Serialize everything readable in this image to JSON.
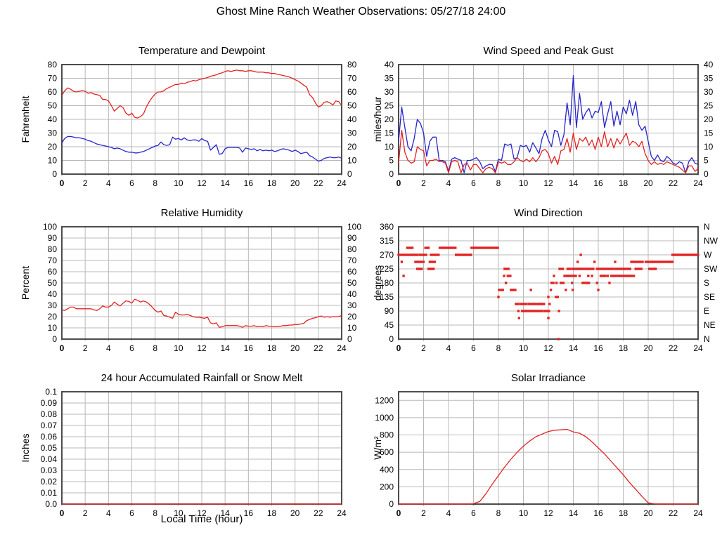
{
  "page_title": "Ghost Mine Ranch Weather Observations: 05/27/18 24:00",
  "colors": {
    "red": "#e32222",
    "blue": "#2626cc",
    "grid": "#b8b8b8",
    "axis": "#383838"
  },
  "chart_data": [
    {
      "id": "temperature_dewpoint",
      "type": "line",
      "title": "Temperature and Dewpoint",
      "ylabel": "Fahrenheit",
      "xlim": [
        0,
        24
      ],
      "xtick_step": 2,
      "ylim": [
        0,
        80
      ],
      "ytick_step": 10,
      "right_labels": "mirror",
      "x_step": 0.25,
      "series": [
        {
          "name": "temperature",
          "color": "red",
          "values": [
            57.5,
            61,
            63,
            62,
            60.5,
            60,
            60.5,
            61,
            60.5,
            59,
            59.5,
            58.5,
            58,
            57.5,
            54.5,
            54.5,
            53.5,
            50,
            46,
            48,
            50,
            48.5,
            44.5,
            43,
            44.5,
            41.5,
            41,
            42,
            44,
            49,
            53,
            56,
            58.5,
            60,
            60,
            61,
            62.5,
            63.5,
            64.5,
            65.5,
            65.5,
            66.5,
            66,
            67,
            67.5,
            68.5,
            68,
            69,
            69.5,
            70,
            70.5,
            71.5,
            72,
            72.5,
            73.5,
            74,
            75,
            75.5,
            75,
            75.5,
            76,
            75.5,
            75.5,
            75,
            75.5,
            75.5,
            75,
            74.5,
            74.5,
            74.5,
            74,
            74,
            73.5,
            73.5,
            73,
            72.5,
            72,
            71.5,
            71,
            70,
            69,
            68,
            66.5,
            65,
            63.5,
            58,
            56,
            52,
            49,
            50,
            52.5,
            53,
            52,
            50.5,
            53.5,
            53,
            50
          ]
        },
        {
          "name": "dewpoint",
          "color": "blue",
          "values": [
            23,
            26,
            27.5,
            27.5,
            27,
            26.5,
            26.5,
            26,
            25.5,
            24.5,
            24,
            23,
            22,
            21.5,
            21,
            20.5,
            20,
            19.5,
            18.5,
            19,
            18.5,
            17.5,
            16.5,
            16,
            16,
            15.5,
            15.5,
            16,
            16.5,
            17.5,
            18.5,
            19.5,
            20.5,
            21,
            23.5,
            21.5,
            21,
            21.5,
            27,
            25.5,
            26,
            25,
            26.5,
            25,
            24.5,
            25,
            25,
            24,
            26,
            24.5,
            24,
            17.5,
            19.5,
            21.5,
            14.5,
            15,
            18.5,
            19.5,
            19.5,
            19.5,
            19.5,
            19,
            16,
            19,
            18.5,
            18,
            18.5,
            17,
            18,
            17,
            17.5,
            17,
            17.5,
            16.5,
            17,
            18,
            18.5,
            18,
            17.5,
            16.5,
            17.5,
            16.5,
            15,
            15.5,
            16,
            13.5,
            12.5,
            11,
            9.5,
            10,
            11.5,
            12,
            12.5,
            12,
            12,
            12.5,
            11.5
          ]
        }
      ]
    },
    {
      "id": "wind",
      "type": "line",
      "title": "Wind Speed and Peak Gust",
      "ylabel": "miles/hour",
      "xlim": [
        0,
        24
      ],
      "xtick_step": 2,
      "ylim": [
        0,
        40
      ],
      "ytick_step": 5,
      "right_labels": "mirror",
      "x_step": 0.25,
      "series": [
        {
          "name": "peak_gust",
          "color": "blue",
          "values": [
            12,
            24.5,
            17,
            10,
            8.5,
            13,
            20,
            18.5,
            15,
            6.5,
            12,
            13.5,
            13.5,
            5,
            5,
            4.5,
            1,
            5.5,
            6,
            5.5,
            5,
            0.5,
            5,
            5,
            5.5,
            6,
            4.5,
            2,
            3,
            3.5,
            3.5,
            1,
            5.5,
            5,
            11,
            10.5,
            11,
            5.5,
            6,
            10.5,
            10,
            10.5,
            8,
            11.5,
            9.5,
            7.5,
            13,
            16,
            12.5,
            10,
            16,
            15.5,
            10.5,
            14.5,
            26,
            18,
            36,
            17,
            29.5,
            20,
            22.5,
            24,
            20.5,
            23,
            22.5,
            26.5,
            17,
            22,
            26.5,
            17.5,
            23,
            18,
            24.5,
            22,
            27,
            21.5,
            26.5,
            18,
            16,
            17.5,
            12,
            6.5,
            5,
            7,
            5,
            4.5,
            6.5,
            5.5,
            4,
            3.5,
            4.5,
            4,
            0.5,
            4.5,
            6,
            4,
            3.5
          ]
        },
        {
          "name": "wind_speed",
          "color": "red",
          "values": [
            4,
            16,
            8,
            5,
            4,
            4.5,
            10,
            9,
            8.5,
            3,
            5,
            5,
            5.5,
            4.5,
            4.5,
            4,
            0.5,
            4.5,
            5,
            4.5,
            0.5,
            3.5,
            4,
            1.5,
            3.5,
            3.5,
            2,
            0.5,
            2,
            2.5,
            2,
            0.5,
            4.5,
            4,
            4.5,
            3.5,
            3.5,
            4.5,
            6,
            5,
            4.5,
            5.5,
            4.5,
            6,
            4.5,
            6,
            8.5,
            9,
            7.5,
            4,
            6.5,
            3.5,
            8.5,
            9,
            13,
            8,
            15,
            9,
            13,
            12,
            13.5,
            10.5,
            12.5,
            9,
            13.5,
            10,
            15.5,
            10,
            13,
            9.5,
            13,
            11,
            13,
            15,
            10.5,
            12,
            11.5,
            10,
            12,
            7.5,
            5,
            3.5,
            4.5,
            3.5,
            4,
            3.5,
            4.5,
            4,
            3.5,
            3,
            2.5,
            1.5,
            0.5,
            3,
            3,
            1,
            2
          ]
        }
      ]
    },
    {
      "id": "humidity",
      "type": "line",
      "title": "Relative Humidity",
      "ylabel": "Percent",
      "xlim": [
        0,
        24
      ],
      "xtick_step": 2,
      "ylim": [
        0,
        100
      ],
      "ytick_step": 10,
      "right_labels": "mirror",
      "x_step": 0.25,
      "series": [
        {
          "name": "relative_humidity",
          "color": "red",
          "values": [
            26,
            25.5,
            27,
            28.5,
            28.5,
            27,
            27,
            27,
            27,
            27,
            27,
            26,
            25.5,
            27,
            29.5,
            28.5,
            28.5,
            30,
            33,
            31,
            29.5,
            32,
            34,
            33.5,
            32,
            35.5,
            34.5,
            33,
            34,
            33,
            31,
            28.5,
            25.5,
            24,
            25,
            21,
            20.5,
            19.5,
            18.5,
            24,
            22,
            21.5,
            21.5,
            22,
            21,
            20,
            19.5,
            19.5,
            19,
            18.5,
            19.5,
            14.5,
            13.5,
            14.5,
            10.5,
            11,
            12,
            12,
            12,
            12,
            12,
            11.5,
            10.5,
            12,
            11.5,
            11.5,
            12,
            11,
            11.5,
            11,
            12,
            11.5,
            11.5,
            11,
            11,
            11.5,
            12,
            12,
            12.5,
            12.5,
            13,
            13,
            13.5,
            14,
            16.5,
            17.5,
            18.5,
            19,
            20,
            20.5,
            19.5,
            20,
            19.5,
            20,
            20,
            20,
            21
          ]
        }
      ]
    },
    {
      "id": "direction",
      "type": "scatter",
      "title": "Wind Direction",
      "ylabel": "degrees",
      "xlim": [
        0,
        24
      ],
      "xtick_step": 2,
      "ylim": [
        0,
        360
      ],
      "ytick_step": 45,
      "right_labels": [
        "N",
        "NE",
        "E",
        "SE",
        "S",
        "SW",
        "W",
        "NW",
        "N"
      ],
      "series": [
        {
          "name": "wind_direction",
          "color": "red",
          "runs": [
            [
              270,
              0,
              1.5
            ],
            [
              292.5,
              0.7,
              1.1
            ],
            [
              247.5,
              1.35,
              2.0
            ],
            [
              225,
              1.5,
              1.85
            ],
            [
              270,
              1.7,
              2.2
            ],
            [
              292.5,
              2.15,
              2.4
            ],
            [
              225,
              2.4,
              2.8
            ],
            [
              247.5,
              2.5,
              2.9
            ],
            [
              270,
              2.6,
              3.2
            ],
            [
              292.5,
              3.3,
              4.55
            ],
            [
              270,
              4.6,
              5.8
            ],
            [
              292.5,
              5.85,
              7.95
            ],
            [
              157.5,
              8.05,
              8.35
            ],
            [
              225,
              8.5,
              8.8
            ],
            [
              202.5,
              8.75,
              8.95
            ],
            [
              157.5,
              9.0,
              9.35
            ],
            [
              112.5,
              9.4,
              9.6
            ],
            [
              112.5,
              9.8,
              10.25
            ],
            [
              90,
              9.9,
              10.2
            ],
            [
              90,
              10.35,
              10.65
            ],
            [
              112.5,
              10.45,
              10.75
            ],
            [
              90,
              10.8,
              11.55
            ],
            [
              112.5,
              10.9,
              11.2
            ],
            [
              112.5,
              11.3,
              11.65
            ],
            [
              90,
              11.75,
              12.05
            ],
            [
              180,
              12.25,
              12.4
            ],
            [
              225,
              12.9,
              13.15
            ],
            [
              180,
              13.0,
              13.2
            ],
            [
              202.5,
              13.3,
              13.55
            ],
            [
              225,
              13.55,
              13.75
            ],
            [
              202.5,
              13.65,
              14.05
            ],
            [
              225,
              13.95,
              14.45
            ],
            [
              225,
              14.55,
              15.1
            ],
            [
              180,
              14.75,
              15.25
            ],
            [
              225,
              15.25,
              15.6
            ],
            [
              225,
              15.9,
              16.15
            ],
            [
              202.5,
              16.2,
              16.55
            ],
            [
              225,
              16.3,
              17.15
            ],
            [
              202.5,
              17.05,
              17.65
            ],
            [
              225,
              17.35,
              18.05
            ],
            [
              202.5,
              17.75,
              18.85
            ],
            [
              225,
              18.2,
              18.55
            ],
            [
              247.5,
              18.65,
              19.55
            ],
            [
              225,
              19.0,
              19.45
            ],
            [
              247.5,
              19.8,
              20.3
            ],
            [
              225,
              20.1,
              20.6
            ],
            [
              247.5,
              20.4,
              21.95
            ],
            [
              270,
              21.95,
              24
            ]
          ],
          "points": [
            [
              0.25,
              247.5
            ],
            [
              0.4,
              202.5
            ],
            [
              8.0,
              135
            ],
            [
              8.45,
              202.5
            ],
            [
              8.6,
              180
            ],
            [
              9.6,
              90
            ],
            [
              9.65,
              67.5
            ],
            [
              10.6,
              157.5
            ],
            [
              12.0,
              135
            ],
            [
              12.0,
              67.5
            ],
            [
              12.1,
              112.5
            ],
            [
              12.2,
              157.5
            ],
            [
              12.45,
              202.5
            ],
            [
              12.6,
              135
            ],
            [
              12.65,
              180
            ],
            [
              12.75,
              135
            ],
            [
              12.8,
              0
            ],
            [
              12.85,
              90
            ],
            [
              13.4,
              157.5
            ],
            [
              13.9,
              180
            ],
            [
              13.95,
              157.5
            ],
            [
              14.2,
              202.5
            ],
            [
              14.35,
              247.5
            ],
            [
              14.5,
              202.5
            ],
            [
              14.6,
              270
            ],
            [
              15.2,
              202.5
            ],
            [
              15.5,
              202.5
            ],
            [
              15.7,
              247.5
            ],
            [
              15.9,
              180
            ],
            [
              16.0,
              157.5
            ],
            [
              16.75,
              202.5
            ],
            [
              16.9,
              180
            ],
            [
              17.35,
              247.5
            ]
          ]
        }
      ]
    },
    {
      "id": "rain",
      "type": "line",
      "title": "24 hour Accumulated Rainfall or Snow Melt",
      "ylabel": "Inches",
      "xlabel": "Local Time (hour)",
      "xlim": [
        0,
        24
      ],
      "xtick_step": 2,
      "ylim": [
        0,
        0.1
      ],
      "ytick_step": 0.01,
      "ytick_labels": [
        "0.0",
        "0.01",
        "0.02",
        "0.03",
        "0.04",
        "0.05",
        "0.06",
        "0.07",
        "0.08",
        "0.09",
        "0.1"
      ],
      "right_labels": "none",
      "x_step": 24,
      "series": [
        {
          "name": "rainfall",
          "color": "red",
          "values": [
            0,
            0
          ]
        }
      ]
    },
    {
      "id": "solar",
      "type": "line",
      "title": "Solar Irradiance",
      "ylabel": "W/m²",
      "xlim": [
        0,
        24
      ],
      "xtick_step": 2,
      "ylim": [
        0,
        1300
      ],
      "ytick_step": 200,
      "right_labels": "none",
      "x_step": 0.5,
      "series": [
        {
          "name": "solar_irradiance",
          "color": "red",
          "values": [
            0,
            0,
            0,
            0,
            0,
            0,
            0,
            0,
            0,
            0,
            0,
            0,
            5,
            30,
            120,
            230,
            330,
            430,
            520,
            600,
            670,
            730,
            780,
            810,
            840,
            855,
            860,
            865,
            835,
            820,
            780,
            720,
            650,
            580,
            500,
            420,
            340,
            250,
            170,
            90,
            15,
            3,
            0,
            0,
            0,
            0,
            0,
            0,
            0
          ]
        }
      ]
    }
  ]
}
